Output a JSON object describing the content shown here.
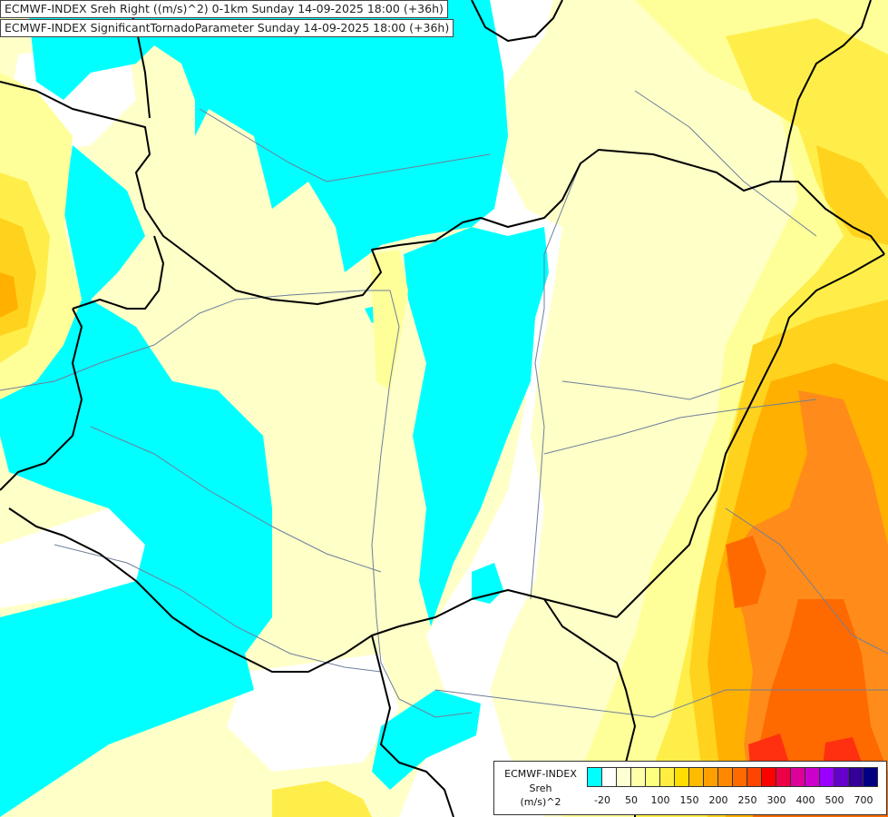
{
  "header": {
    "line1": "ECMWF-INDEX Sreh Right ((m/s)^2) 0-1km Sunday 14-09-2025 18:00 (+36h)",
    "line2": "ECMWF-INDEX SignificantTornadoParameter Sunday 14-09-2025 18:00 (+36h)"
  },
  "legend": {
    "source": "ECMWF-INDEX",
    "parameter": "Sreh",
    "unit": "(m/s)^2",
    "colors": [
      "#00ffff",
      "#ffffff",
      "#ffffd4",
      "#ffffaa",
      "#ffff80",
      "#ffee40",
      "#ffdd00",
      "#ffbb00",
      "#ffa000",
      "#ff8800",
      "#ff6a00",
      "#ff4400",
      "#ff0000",
      "#ee0044",
      "#dd0099",
      "#cc00cc",
      "#9900ff",
      "#6600cc",
      "#330099",
      "#000080"
    ],
    "ticks": [
      {
        "label": "-20",
        "index": 1
      },
      {
        "label": "50",
        "index": 3
      },
      {
        "label": "100",
        "index": 5
      },
      {
        "label": "150",
        "index": 7
      },
      {
        "label": "200",
        "index": 9
      },
      {
        "label": "250",
        "index": 11
      },
      {
        "label": "300",
        "index": 13
      },
      {
        "label": "400",
        "index": 15
      },
      {
        "label": "500",
        "index": 17
      },
      {
        "label": "700",
        "index": 19
      }
    ]
  },
  "map": {
    "colors": {
      "cyan": "#00ffff",
      "white": "#ffffff",
      "pale": "#ffffc8",
      "light": "#ffff9a",
      "yellow": "#ffee4a",
      "gold": "#ffd21e",
      "amber": "#ffb000",
      "orange": "#ff8c1a",
      "deep": "#ff6a00",
      "red": "#ff3010",
      "border": "#000000",
      "river": "#6e7f9a"
    }
  }
}
